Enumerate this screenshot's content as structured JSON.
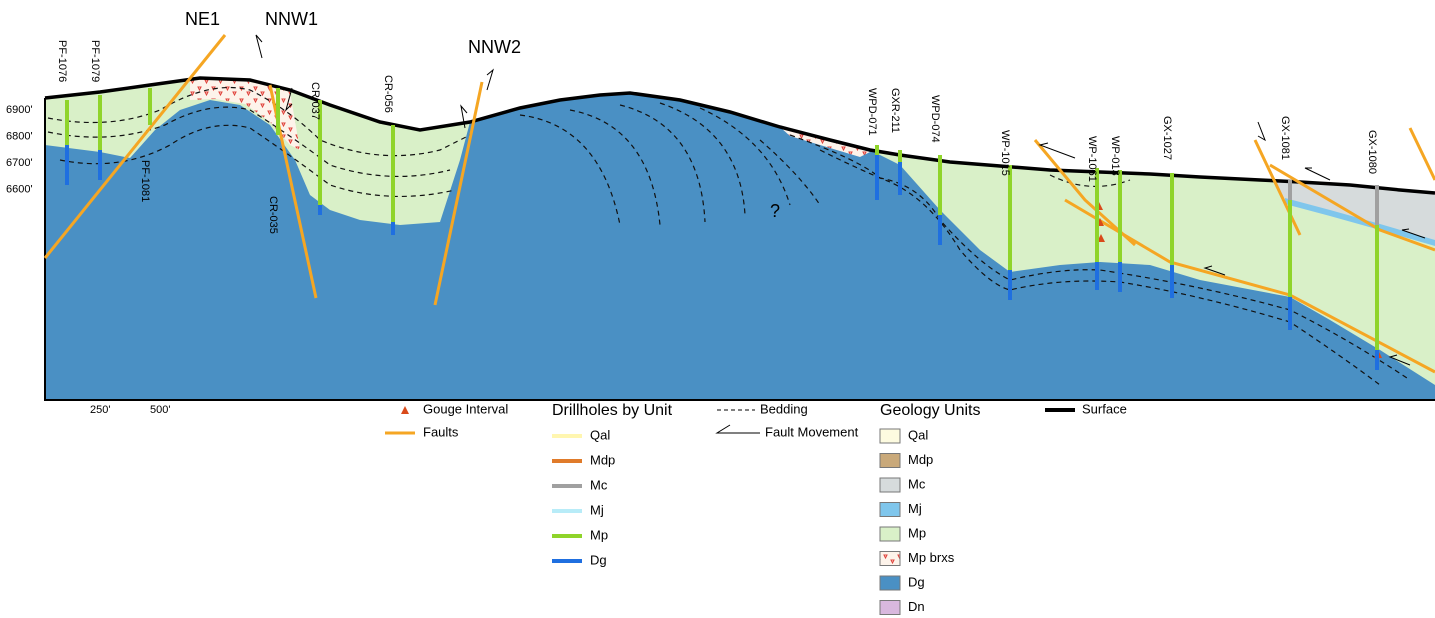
{
  "faults": [
    {
      "label": "NE1"
    },
    {
      "label": "NNW1"
    },
    {
      "label": "NNW2"
    }
  ],
  "elevations": [
    "6900'",
    "6800'",
    "6700'",
    "6600'"
  ],
  "scale": [
    "250'",
    "500'"
  ],
  "unknown": "?",
  "drillholes": [
    {
      "label": "PF-1076"
    },
    {
      "label": "PF-1079"
    },
    {
      "label": "PF-1081"
    },
    {
      "label": "CR-037"
    },
    {
      "label": "CR-035"
    },
    {
      "label": "CR-056"
    },
    {
      "label": "WPD-071"
    },
    {
      "label": "GXR-211"
    },
    {
      "label": "WPD-074"
    },
    {
      "label": "WP-1015"
    },
    {
      "label": "WP-1061"
    },
    {
      "label": "WP-013"
    },
    {
      "label": "GX-1027"
    },
    {
      "label": "GX-1081"
    },
    {
      "label": "GX-1080"
    }
  ],
  "legend": {
    "gouge": "Gouge Interval",
    "faults": "Faults",
    "bedding": "Bedding",
    "fault_movement": "Fault Movement",
    "surface": "Surface",
    "drillhole_units": {
      "title": "Drillholes by Unit",
      "items": [
        {
          "label": "Qal",
          "color": "#fff6b0"
        },
        {
          "label": "Mdp",
          "color": "#e07b2a"
        },
        {
          "label": "Mc",
          "color": "#a0a0a0"
        },
        {
          "label": "Mj",
          "color": "#b8ecf8"
        },
        {
          "label": "Mp",
          "color": "#8fd42a"
        },
        {
          "label": "Dg",
          "color": "#1f6fe0"
        }
      ]
    },
    "geology_units": {
      "title": "Geology Units",
      "items": [
        {
          "label": "Qal",
          "color": "#fdfbe0"
        },
        {
          "label": "Mdp",
          "color": "#c9a97a"
        },
        {
          "label": "Mc",
          "color": "#d6dbdc"
        },
        {
          "label": "Mj",
          "color": "#7fc6ec"
        },
        {
          "label": "Mp",
          "color": "#d9f0c8"
        },
        {
          "label": "Mp brxs",
          "color": "#fdf3ea"
        },
        {
          "label": "Dg",
          "color": "#4a90c4"
        },
        {
          "label": "Dn",
          "color": "#d9b8de"
        }
      ]
    }
  }
}
